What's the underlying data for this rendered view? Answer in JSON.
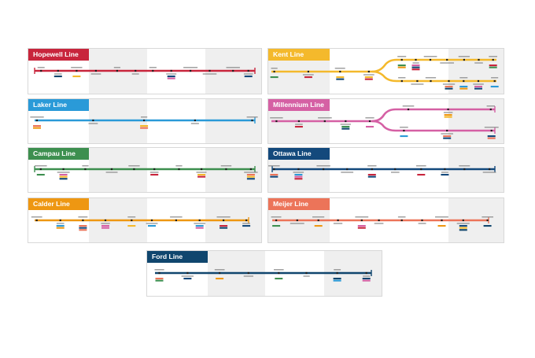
{
  "lines": [
    {
      "id": "hopewell",
      "title": "Hopewell Line",
      "color": "#c8253c"
    },
    {
      "id": "kent",
      "title": "Kent Line",
      "color": "#f4b92c"
    },
    {
      "id": "laker",
      "title": "Laker Line",
      "color": "#2a9ad8"
    },
    {
      "id": "millennium",
      "title": "Millennium Line",
      "color": "#d560a4"
    },
    {
      "id": "campau",
      "title": "Campau Line",
      "color": "#3d8f4f"
    },
    {
      "id": "ottawa",
      "title": "Ottawa Line",
      "color": "#13497c"
    },
    {
      "id": "calder",
      "title": "Calder Line",
      "color": "#ee9712"
    },
    {
      "id": "meijer",
      "title": "Meijer Line",
      "color": "#ec7459"
    },
    {
      "id": "ford",
      "title": "Ford Line",
      "color": "#10466e"
    }
  ],
  "transfer_colors": [
    "#c8253c",
    "#f4b92c",
    "#2a9ad8",
    "#d560a4",
    "#3d8f4f",
    "#13497c",
    "#ee9712",
    "#ec7459",
    "#10466e"
  ]
}
